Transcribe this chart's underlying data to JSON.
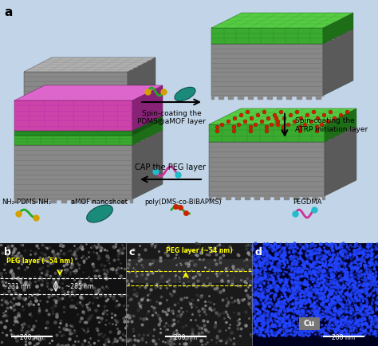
{
  "bg_color": "#c2d5e8",
  "panel_a_label": "a",
  "panel_b_label": "b",
  "panel_c_label": "c",
  "panel_d_label": "d",
  "arrow1_text": "Spin-coating the\nPDMS@aMOF layer",
  "arrow2_text": "Spin-coating the\nATRP initiation layer",
  "arrow3_text": "CAP the PEG layer",
  "legend_labels": [
    "NH₂-PDMS-NH₂",
    "aMOF nanosheet",
    "poly(DMS-co-BIBAPMS)",
    "PEGDMA"
  ],
  "peg_layer_b_text": "PEG layer (~54 nm)",
  "peg_layer_c_text": "PEG layer (~54 nm)",
  "dim1": "~231 nm",
  "dim2": "~285 nm",
  "scale_bar": "200 nm",
  "cu_label": "Cu",
  "gray_face": "#888888",
  "gray_right": "#5a5a5a",
  "gray_top_face": "#aaaaaa",
  "green_face": "#3aaa30",
  "green_right": "#1e6e18",
  "green_top_face": "#55cc44",
  "green2_face": "#228a20",
  "magenta_face": "#cc44aa",
  "magenta_right": "#882277",
  "magenta_top_face": "#dd66cc",
  "teal_color": "#1a8a7a",
  "red_dot_color": "#cc2200",
  "yellow_dot_color": "#d4a000",
  "cyan_dot_color": "#22bbcc",
  "pink_line_color": "#cc3399",
  "green_line_color": "#22aa22"
}
